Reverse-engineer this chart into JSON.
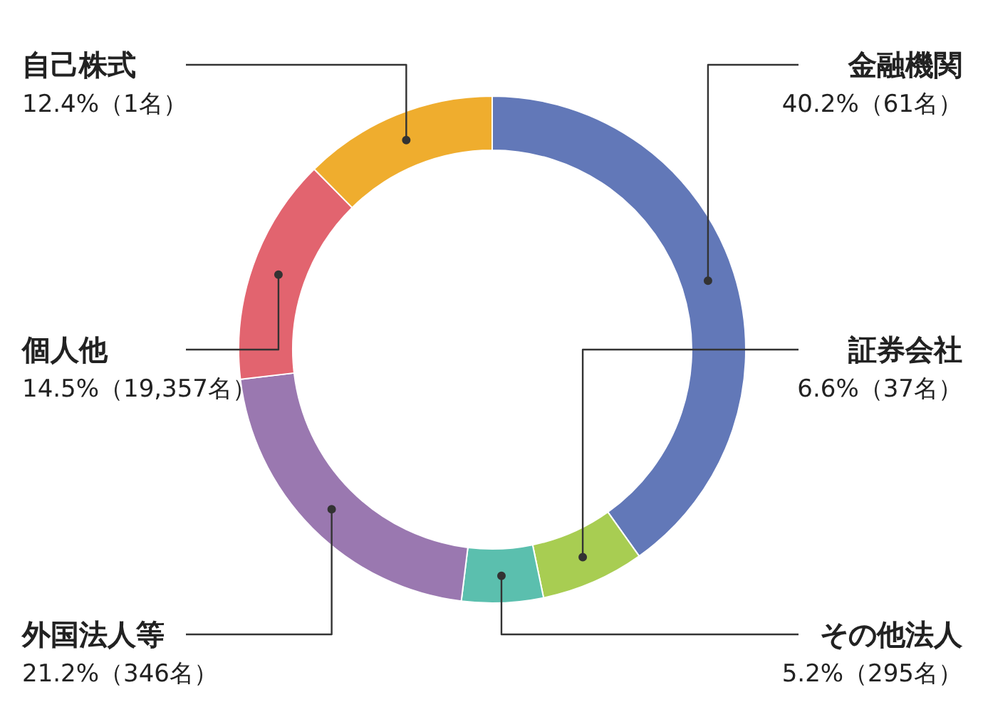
{
  "chart_data": {
    "type": "donut",
    "categories": [
      "金融機関",
      "証券会社",
      "その他法人",
      "外国法人等",
      "個人他",
      "自己株式"
    ],
    "values": [
      40.2,
      6.6,
      5.2,
      21.2,
      14.5,
      12.4
    ],
    "colors": [
      "#6278b8",
      "#a8cd52",
      "#5bbfae",
      "#9a78b0",
      "#e2646f",
      "#efad2e"
    ],
    "value_labels": [
      "40.2%（61名）",
      "6.6%（37名）",
      "5.2%（295名）",
      "21.2%（346名）",
      "14.5%（19,357名）",
      "12.4%（1名）"
    ]
  }
}
